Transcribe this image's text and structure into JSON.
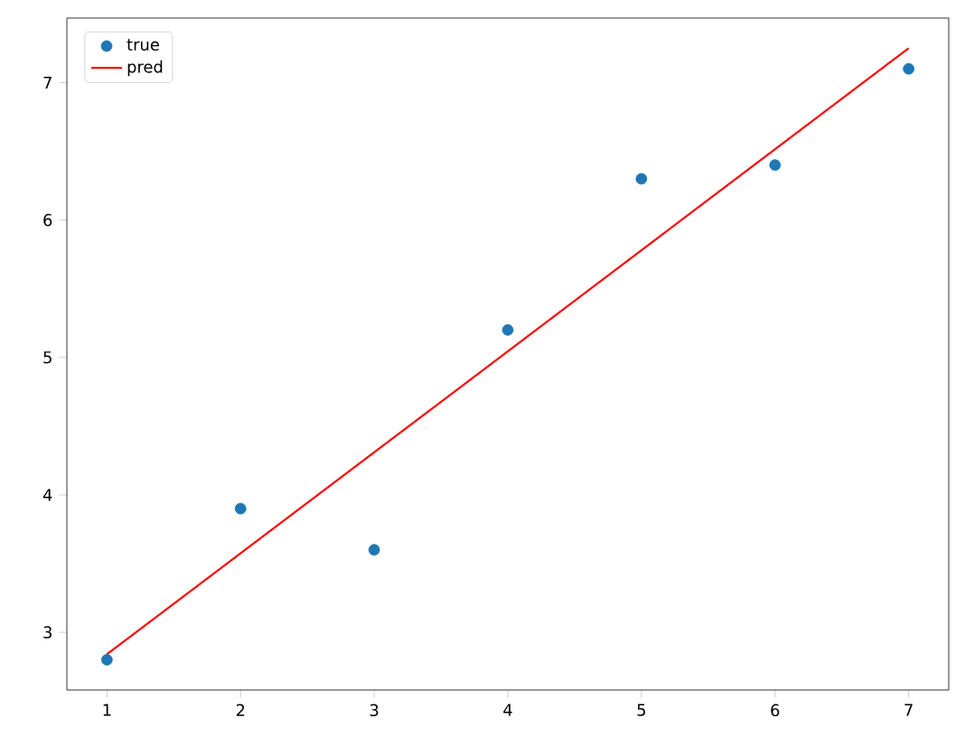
{
  "chart_data": {
    "type": "scatter",
    "x": [
      1,
      2,
      3,
      4,
      5,
      6,
      7
    ],
    "series": [
      {
        "name": "true",
        "color": "#1f77b4",
        "marker": "circle",
        "values": [
          2.8,
          3.9,
          3.6,
          5.2,
          6.3,
          6.4,
          7.1
        ]
      },
      {
        "name": "pred",
        "type": "line",
        "color": "#ff0000",
        "line_style": "solid",
        "marker": "none",
        "x": [
          1,
          7
        ],
        "values": [
          2.84,
          7.25
        ]
      }
    ],
    "xlim": [
      0.7,
      7.3
    ],
    "ylim": [
      2.58,
      7.47
    ],
    "xticks": [
      1,
      2,
      3,
      4,
      5,
      6,
      7
    ],
    "yticks": [
      3,
      4,
      5,
      6,
      7
    ],
    "legend": "top left",
    "grid": false
  }
}
